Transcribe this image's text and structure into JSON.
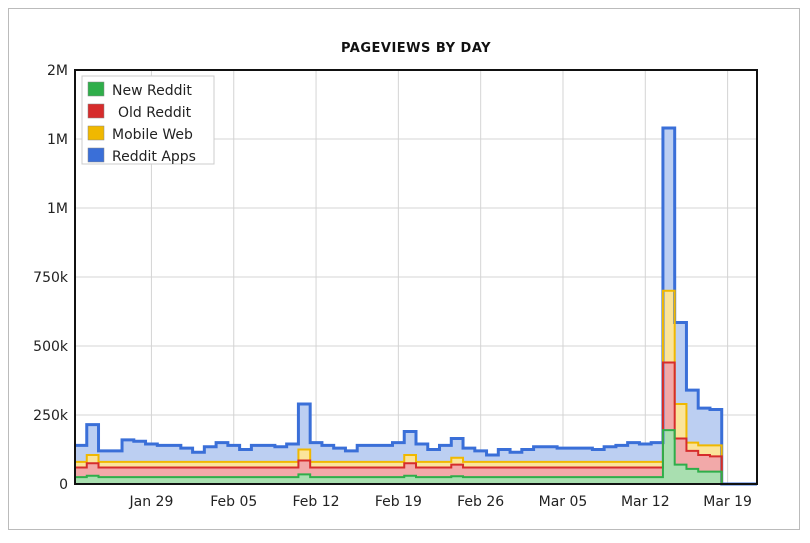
{
  "chart_data": {
    "type": "area",
    "stacked": true,
    "step": true,
    "title": "PAGEVIEWS BY DAY",
    "xlabel": "",
    "ylabel": "",
    "units": "thousands of pageviews",
    "ylim": [
      0,
      1500
    ],
    "y_ticks": [
      0,
      250,
      500,
      750,
      1000,
      1250,
      1500
    ],
    "y_tick_labels": [
      "0",
      "250k",
      "500k",
      "750k",
      "1M",
      "1M",
      "2M"
    ],
    "x_start": "Jan 23",
    "x_ticks": [
      {
        "index": 6,
        "label": "Jan 29"
      },
      {
        "index": 13,
        "label": "Feb 05"
      },
      {
        "index": 20,
        "label": "Feb 12"
      },
      {
        "index": 27,
        "label": "Feb 19"
      },
      {
        "index": 34,
        "label": "Feb 26"
      },
      {
        "index": 41,
        "label": "Mar 05"
      },
      {
        "index": 48,
        "label": "Mar 12"
      },
      {
        "index": 55,
        "label": "Mar 19"
      }
    ],
    "grid": true,
    "legend_position": "top-left",
    "series": [
      {
        "name": "New Reddit",
        "color": "#2fae4a",
        "fill": "#a9dfb0",
        "values": [
          25,
          30,
          25,
          25,
          25,
          25,
          25,
          25,
          25,
          25,
          25,
          25,
          25,
          25,
          25,
          25,
          25,
          25,
          25,
          35,
          25,
          25,
          25,
          25,
          25,
          25,
          25,
          25,
          30,
          25,
          25,
          25,
          28,
          25,
          25,
          25,
          25,
          25,
          25,
          25,
          25,
          25,
          25,
          25,
          25,
          25,
          25,
          25,
          25,
          25,
          195,
          70,
          55,
          45,
          45,
          0,
          0,
          0
        ]
      },
      {
        "name": "Old Reddit",
        "color": "#d62c2c",
        "fill": "#f2a9a9",
        "values": [
          35,
          45,
          35,
          35,
          35,
          35,
          35,
          35,
          35,
          35,
          35,
          35,
          35,
          35,
          35,
          35,
          35,
          35,
          35,
          50,
          35,
          35,
          35,
          35,
          35,
          35,
          35,
          35,
          45,
          35,
          35,
          35,
          42,
          35,
          35,
          35,
          35,
          35,
          35,
          35,
          35,
          35,
          35,
          35,
          35,
          35,
          35,
          35,
          35,
          35,
          245,
          95,
          65,
          60,
          55,
          0,
          0,
          0
        ]
      },
      {
        "name": "Mobile Web",
        "color": "#f0b800",
        "fill": "#fbe49a",
        "values": [
          20,
          30,
          20,
          20,
          20,
          20,
          20,
          20,
          20,
          20,
          20,
          20,
          20,
          20,
          20,
          20,
          20,
          20,
          20,
          40,
          20,
          20,
          20,
          20,
          20,
          20,
          20,
          20,
          30,
          20,
          20,
          20,
          25,
          20,
          20,
          20,
          20,
          20,
          20,
          20,
          20,
          20,
          20,
          20,
          20,
          20,
          20,
          20,
          20,
          20,
          260,
          125,
          30,
          35,
          40,
          0,
          0,
          0
        ]
      },
      {
        "name": "Reddit Apps",
        "color": "#3a6fd8",
        "fill": "#bccff2",
        "values": [
          60,
          110,
          40,
          40,
          80,
          75,
          65,
          60,
          60,
          50,
          35,
          55,
          70,
          60,
          45,
          60,
          60,
          55,
          65,
          165,
          70,
          60,
          50,
          40,
          60,
          60,
          60,
          70,
          85,
          65,
          45,
          60,
          70,
          50,
          40,
          25,
          45,
          35,
          45,
          55,
          55,
          50,
          50,
          50,
          45,
          55,
          60,
          70,
          65,
          70,
          590,
          295,
          190,
          135,
          130,
          0,
          0,
          0
        ]
      }
    ]
  }
}
